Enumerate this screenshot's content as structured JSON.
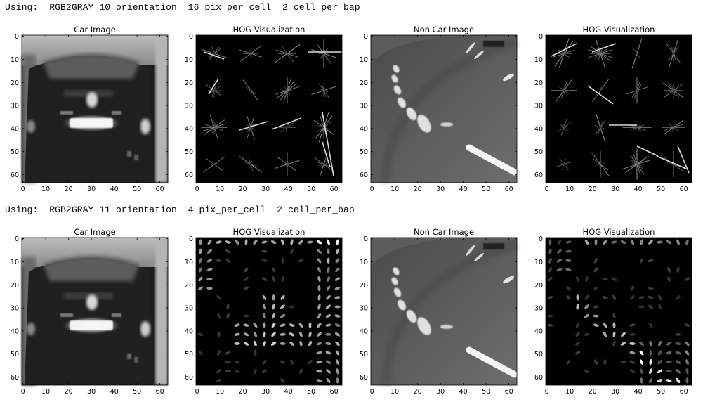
{
  "rows": [
    {
      "using_line": "Using:  RGB2GRAY 10 orientation  16 pix_per_cell  2 cell_per_bap",
      "titles": [
        "Car Image",
        "HOG Visualization",
        "Non Car Image",
        "HOG Visualization"
      ]
    },
    {
      "using_line": "Using:  RGB2GRAY 11 orientation  4 pix_per_cell  2 cell_per_bap",
      "titles": [
        "Car Image",
        "HOG Visualization",
        "Non Car Image",
        "HOG Visualization"
      ]
    }
  ],
  "axes": {
    "xticks": [
      "0",
      "10",
      "20",
      "30",
      "40",
      "50",
      "60"
    ],
    "yticks": [
      "0",
      "10",
      "20",
      "30",
      "40",
      "50",
      "60"
    ]
  },
  "colors": {
    "background": "#ffffff",
    "hog_background": "#000000",
    "text": "#000000"
  }
}
